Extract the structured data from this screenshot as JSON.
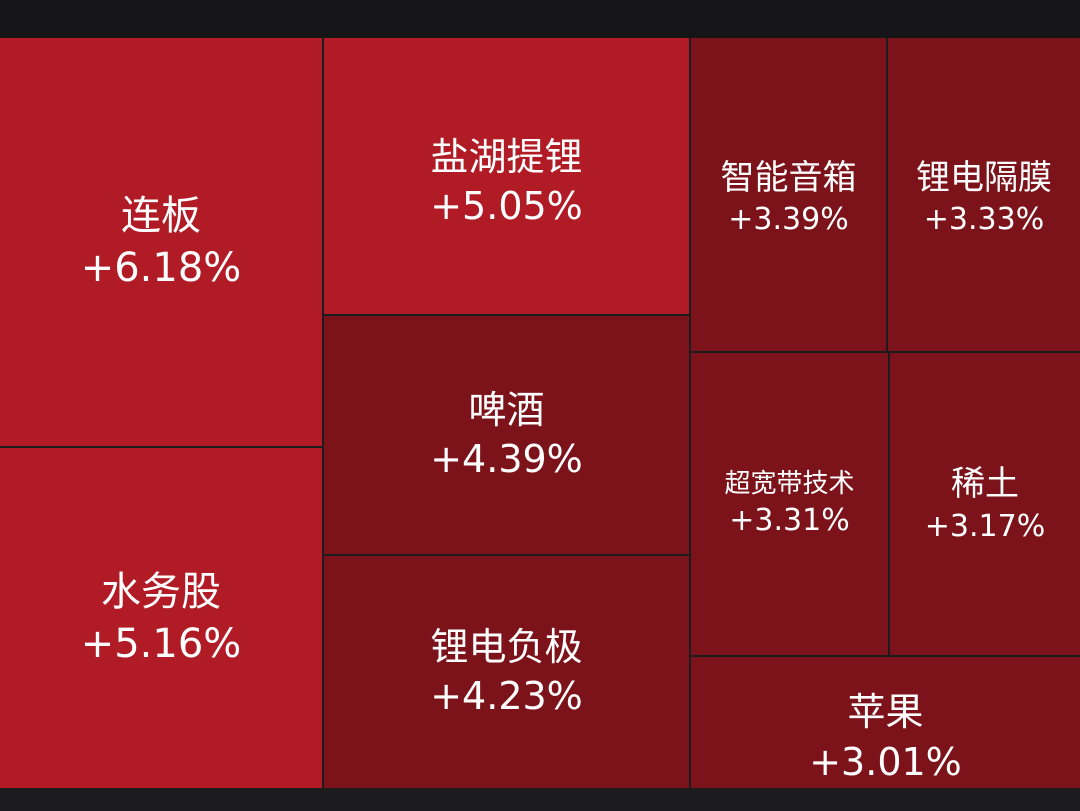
{
  "tiles": [
    {
      "name": "连板",
      "change": "+6.18%"
    },
    {
      "name": "水务股",
      "change": "+5.16%"
    },
    {
      "name": "盐湖提锂",
      "change": "+5.05%"
    },
    {
      "name": "啤酒",
      "change": "+4.39%"
    },
    {
      "name": "锂电负极",
      "change": "+4.23%"
    },
    {
      "name": "智能音箱",
      "change": "+3.39%"
    },
    {
      "name": "锂电隔膜",
      "change": "+3.33%"
    },
    {
      "name": "超宽带技术",
      "change": "+3.31%"
    },
    {
      "name": "稀土",
      "change": "+3.17%"
    },
    {
      "name": "苹果",
      "change": "+3.01%"
    }
  ]
}
